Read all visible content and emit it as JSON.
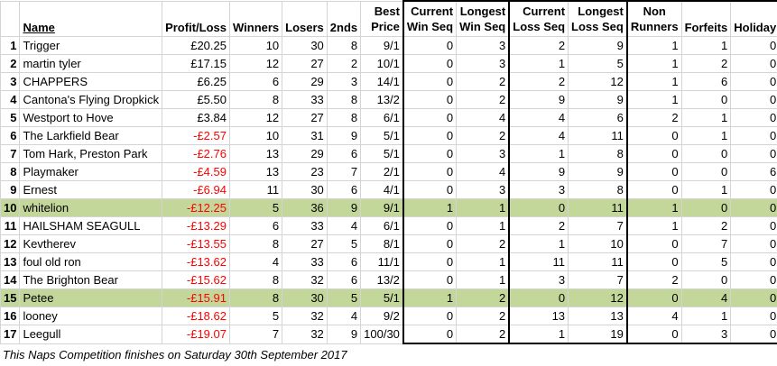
{
  "headers": {
    "rank": "",
    "name": "Name",
    "profit_loss": "Profit/Loss",
    "winners": "Winners",
    "losers": "Losers",
    "seconds": "2nds",
    "best_price": [
      "Best",
      "Price"
    ],
    "current_win_seq": [
      "Current",
      "Win Seq"
    ],
    "longest_win_seq": [
      "Longest",
      "Win Seq"
    ],
    "current_loss_seq": [
      "Current",
      "Loss Seq"
    ],
    "longest_loss_seq": [
      "Longest",
      "Loss Seq"
    ],
    "non_runners": [
      "Non",
      "Runners"
    ],
    "forfeits": "Forfeits",
    "holiday": "Holiday"
  },
  "rows": [
    {
      "rank": "1",
      "name": "Trigger",
      "pl": "£20.25",
      "neg": false,
      "w": "10",
      "l": "30",
      "s": "8",
      "bp": "9/1",
      "cws": "0",
      "lws": "3",
      "cls": "2",
      "lls": "9",
      "nr": "1",
      "f": "1",
      "h": "0",
      "hl": false
    },
    {
      "rank": "2",
      "name": "martin tyler",
      "pl": "£17.15",
      "neg": false,
      "w": "12",
      "l": "27",
      "s": "2",
      "bp": "10/1",
      "cws": "0",
      "lws": "3",
      "cls": "1",
      "lls": "5",
      "nr": "1",
      "f": "2",
      "h": "0",
      "hl": false
    },
    {
      "rank": "3",
      "name": "CHAPPERS",
      "pl": "£6.25",
      "neg": false,
      "w": "6",
      "l": "29",
      "s": "3",
      "bp": "14/1",
      "cws": "0",
      "lws": "2",
      "cls": "2",
      "lls": "12",
      "nr": "1",
      "f": "6",
      "h": "0",
      "hl": false
    },
    {
      "rank": "4",
      "name": "Cantona's Flying Dropkick",
      "pl": "£5.50",
      "neg": false,
      "w": "8",
      "l": "33",
      "s": "8",
      "bp": "13/2",
      "cws": "0",
      "lws": "2",
      "cls": "9",
      "lls": "9",
      "nr": "1",
      "f": "0",
      "h": "0",
      "hl": false
    },
    {
      "rank": "5",
      "name": "Westport to Hove",
      "pl": "£3.84",
      "neg": false,
      "w": "12",
      "l": "27",
      "s": "8",
      "bp": "6/1",
      "cws": "0",
      "lws": "4",
      "cls": "4",
      "lls": "6",
      "nr": "2",
      "f": "1",
      "h": "0",
      "hl": false
    },
    {
      "rank": "6",
      "name": "The Larkfield Bear",
      "pl": "-£2.57",
      "neg": true,
      "w": "10",
      "l": "31",
      "s": "9",
      "bp": "5/1",
      "cws": "0",
      "lws": "2",
      "cls": "4",
      "lls": "11",
      "nr": "0",
      "f": "1",
      "h": "0",
      "hl": false
    },
    {
      "rank": "7",
      "name": "Tom Hark, Preston Park",
      "pl": "-£2.76",
      "neg": true,
      "w": "13",
      "l": "29",
      "s": "6",
      "bp": "5/1",
      "cws": "0",
      "lws": "3",
      "cls": "1",
      "lls": "8",
      "nr": "0",
      "f": "0",
      "h": "0",
      "hl": false
    },
    {
      "rank": "8",
      "name": "Playmaker",
      "pl": "-£4.59",
      "neg": true,
      "w": "13",
      "l": "23",
      "s": "7",
      "bp": "2/1",
      "cws": "0",
      "lws": "4",
      "cls": "9",
      "lls": "9",
      "nr": "0",
      "f": "0",
      "h": "6",
      "hl": false
    },
    {
      "rank": "9",
      "name": "Ernest",
      "pl": "-£6.94",
      "neg": true,
      "w": "11",
      "l": "30",
      "s": "6",
      "bp": "4/1",
      "cws": "0",
      "lws": "3",
      "cls": "3",
      "lls": "8",
      "nr": "0",
      "f": "1",
      "h": "0",
      "hl": false
    },
    {
      "rank": "10",
      "name": "whitelion",
      "pl": "-£12.25",
      "neg": true,
      "w": "5",
      "l": "36",
      "s": "9",
      "bp": "9/1",
      "cws": "1",
      "lws": "1",
      "cls": "0",
      "lls": "11",
      "nr": "1",
      "f": "0",
      "h": "0",
      "hl": true
    },
    {
      "rank": "11",
      "name": "HAILSHAM SEAGULL",
      "pl": "-£13.29",
      "neg": true,
      "w": "6",
      "l": "33",
      "s": "4",
      "bp": "6/1",
      "cws": "0",
      "lws": "1",
      "cls": "2",
      "lls": "7",
      "nr": "1",
      "f": "2",
      "h": "0",
      "hl": false
    },
    {
      "rank": "12",
      "name": "Kevtherev",
      "pl": "-£13.55",
      "neg": true,
      "w": "8",
      "l": "27",
      "s": "5",
      "bp": "8/1",
      "cws": "0",
      "lws": "2",
      "cls": "1",
      "lls": "10",
      "nr": "0",
      "f": "7",
      "h": "0",
      "hl": false
    },
    {
      "rank": "13",
      "name": "foul old ron",
      "pl": "-£13.62",
      "neg": true,
      "w": "4",
      "l": "33",
      "s": "6",
      "bp": "11/1",
      "cws": "0",
      "lws": "1",
      "cls": "11",
      "lls": "11",
      "nr": "0",
      "f": "5",
      "h": "0",
      "hl": false
    },
    {
      "rank": "14",
      "name": "The Brighton Bear",
      "pl": "-£15.62",
      "neg": true,
      "w": "8",
      "l": "32",
      "s": "6",
      "bp": "13/2",
      "cws": "0",
      "lws": "1",
      "cls": "3",
      "lls": "7",
      "nr": "2",
      "f": "0",
      "h": "0",
      "hl": false
    },
    {
      "rank": "15",
      "name": "Petee",
      "pl": "-£15.91",
      "neg": true,
      "w": "8",
      "l": "30",
      "s": "5",
      "bp": "5/1",
      "cws": "1",
      "lws": "2",
      "cls": "0",
      "lls": "12",
      "nr": "0",
      "f": "4",
      "h": "0",
      "hl": true
    },
    {
      "rank": "16",
      "name": "looney",
      "pl": "-£18.62",
      "neg": true,
      "w": "5",
      "l": "32",
      "s": "4",
      "bp": "9/2",
      "cws": "0",
      "lws": "2",
      "cls": "13",
      "lls": "13",
      "nr": "4",
      "f": "1",
      "h": "0",
      "hl": false
    },
    {
      "rank": "17",
      "name": "Leegull",
      "pl": "-£19.07",
      "neg": true,
      "w": "7",
      "l": "32",
      "s": "9",
      "bp": "100/30",
      "cws": "0",
      "lws": "2",
      "cls": "1",
      "lls": "19",
      "nr": "0",
      "f": "3",
      "h": "0",
      "hl": false
    }
  ],
  "footnote": "This Naps Competition finishes on Saturday 30th September 2017",
  "colors": {
    "highlight": "#c4d79b",
    "negative": "#ff0000",
    "gridline": "#d4d4d4"
  }
}
